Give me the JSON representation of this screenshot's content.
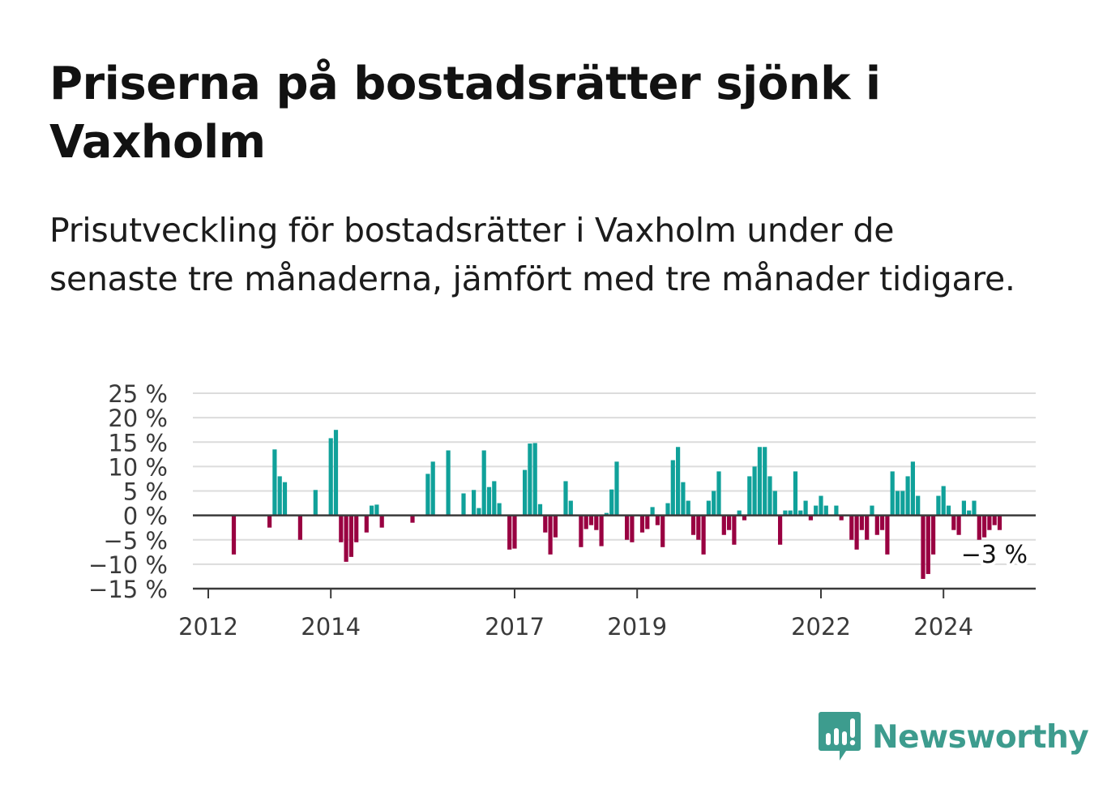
{
  "title": "Priserna på bostadsrätter sjönk i Vaxholm",
  "subtitle": "Prisutveckling för bostadsrätter i Vaxholm under de senaste tre månaderna, jämfört med tre månader tidigare.",
  "brand": {
    "name": "Newsworthy",
    "icon": "bar-chart-speech-bubble-icon",
    "color": "#3d9c8e"
  },
  "chart_data": {
    "type": "bar",
    "title": "",
    "xlabel": "",
    "ylabel": "",
    "unit": "%",
    "ylim": [
      -15,
      25
    ],
    "yticks": [
      25,
      20,
      15,
      10,
      5,
      0,
      -5,
      -10,
      -15
    ],
    "ytick_labels": [
      "25 %",
      "20 %",
      "15 %",
      "10 %",
      "5 %",
      "0 %",
      "−5 %",
      "−10 %",
      "−15 %"
    ],
    "xticks": [
      "2012",
      "2014",
      "2017",
      "2019",
      "2022",
      "2024"
    ],
    "grid": true,
    "colors": {
      "positive": "#10a19a",
      "negative": "#990041"
    },
    "last_value_label": "−3 %",
    "series": [
      {
        "x": [
          "2012-01",
          "2012-02",
          "2012-03",
          "2012-04",
          "2012-05",
          "2012-06",
          "2012-07",
          "2012-08",
          "2012-09",
          "2012-10",
          "2012-11",
          "2012-12",
          "2013-01",
          "2013-02",
          "2013-03",
          "2013-04",
          "2013-05",
          "2013-06",
          "2013-07",
          "2013-08",
          "2013-09",
          "2013-10",
          "2013-11",
          "2013-12",
          "2014-01",
          "2014-02",
          "2014-03",
          "2014-04",
          "2014-05",
          "2014-06",
          "2014-07",
          "2014-08",
          "2014-09",
          "2014-10",
          "2014-11",
          "2014-12",
          "2015-01",
          "2015-02",
          "2015-03",
          "2015-04",
          "2015-05",
          "2015-06",
          "2015-07",
          "2015-08",
          "2015-09",
          "2015-10",
          "2015-11",
          "2015-12",
          "2016-01",
          "2016-02",
          "2016-03",
          "2016-04",
          "2016-05",
          "2016-06",
          "2016-07",
          "2016-08",
          "2016-09",
          "2016-10",
          "2016-11",
          "2016-12",
          "2017-01",
          "2017-02",
          "2017-03",
          "2017-04",
          "2017-05",
          "2017-06",
          "2017-07",
          "2017-08",
          "2017-09",
          "2017-10",
          "2017-11",
          "2017-12",
          "2018-01",
          "2018-02",
          "2018-03",
          "2018-04",
          "2018-05",
          "2018-06",
          "2018-07",
          "2018-08",
          "2018-09",
          "2018-10",
          "2018-11",
          "2018-12",
          "2019-01",
          "2019-02",
          "2019-03",
          "2019-04",
          "2019-05",
          "2019-06",
          "2019-07",
          "2019-08",
          "2019-09",
          "2019-10",
          "2019-11",
          "2019-12",
          "2020-01",
          "2020-02",
          "2020-03",
          "2020-04",
          "2020-05",
          "2020-06",
          "2020-07",
          "2020-08",
          "2020-09",
          "2020-10",
          "2020-11",
          "2020-12",
          "2021-01",
          "2021-02",
          "2021-03",
          "2021-04",
          "2021-05",
          "2021-06",
          "2021-07",
          "2021-08",
          "2021-09",
          "2021-10",
          "2021-11",
          "2021-12",
          "2022-01",
          "2022-02",
          "2022-03",
          "2022-04",
          "2022-05",
          "2022-06",
          "2022-07",
          "2022-08",
          "2022-09",
          "2022-10",
          "2022-11",
          "2022-12",
          "2023-01",
          "2023-02",
          "2023-03",
          "2023-04",
          "2023-05",
          "2023-06",
          "2023-07",
          "2023-08",
          "2023-09",
          "2023-10",
          "2023-11",
          "2023-12",
          "2024-01",
          "2024-02",
          "2024-03",
          "2024-04",
          "2024-05",
          "2024-06",
          "2024-07",
          "2024-08",
          "2024-09",
          "2024-10",
          "2024-11",
          "2024-12"
        ],
        "values": [
          0,
          0,
          0,
          0,
          0,
          -8,
          0,
          0,
          0,
          0,
          0,
          0,
          -2.5,
          13.5,
          8,
          6.8,
          0,
          0,
          -5,
          0,
          0,
          5.2,
          0,
          0,
          15.8,
          17.5,
          -5.5,
          -9.5,
          -8.5,
          -5.5,
          0,
          -3.5,
          2,
          2.2,
          -2.5,
          0,
          0,
          0,
          0,
          0,
          -1.5,
          0,
          0,
          8.5,
          11,
          0,
          0,
          13.3,
          0,
          0,
          4.5,
          0,
          5.2,
          1.5,
          13.3,
          5.8,
          7,
          2.5,
          0,
          -7,
          -6.8,
          0,
          9.3,
          14.7,
          14.8,
          2.3,
          -3.5,
          -8,
          -4.5,
          0,
          7,
          3,
          0,
          -6.5,
          -2.8,
          -2,
          -3,
          -6.3,
          0.5,
          5.3,
          11,
          0,
          -5,
          -5.5,
          0,
          -3.5,
          -2.8,
          1.7,
          -2,
          -6.5,
          2.5,
          11.3,
          14,
          6.8,
          3,
          -4,
          -5,
          -8,
          3,
          5,
          9,
          -4,
          -3,
          -6,
          1,
          -1,
          8,
          10,
          14,
          14,
          8,
          5,
          -6,
          1,
          1,
          9,
          1,
          3,
          -1,
          2,
          4,
          2,
          0,
          2,
          -1,
          0,
          -5,
          -7,
          -3,
          -5,
          2,
          -4,
          -3,
          -8,
          9,
          5,
          5,
          8,
          11,
          4,
          -13,
          -12,
          -8,
          4,
          6,
          2,
          -3,
          -4,
          3,
          1,
          3,
          -5,
          -4.5,
          -3,
          -2,
          -3
        ]
      }
    ]
  }
}
